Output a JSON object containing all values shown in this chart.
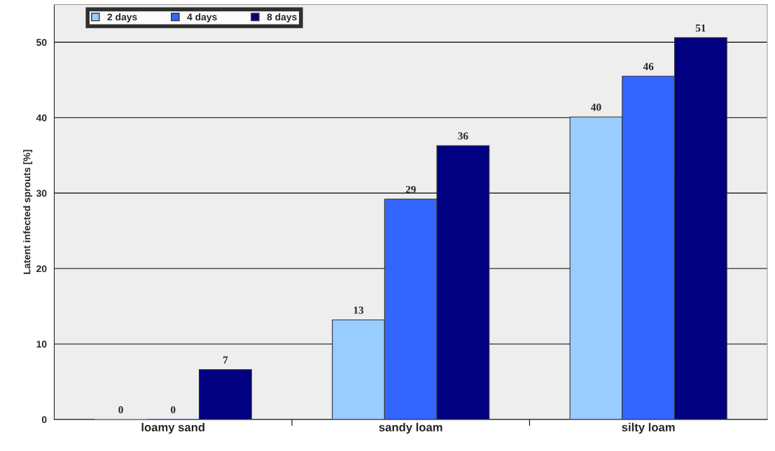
{
  "chart_data": {
    "type": "bar",
    "ylabel": "Latent infected sprouts [%]",
    "categories": [
      "loamy sand",
      "sandy loam",
      "silty loam"
    ],
    "series": [
      {
        "name": "2 days",
        "color": "#99ccff",
        "values": [
          0,
          13.2,
          40.1
        ],
        "value_labels": [
          "0",
          "13",
          "40"
        ]
      },
      {
        "name": "4 days",
        "color": "#3366ff",
        "values": [
          0,
          29.2,
          45.5
        ],
        "value_labels": [
          "0",
          "29",
          "46"
        ]
      },
      {
        "name": "8 days",
        "color": "#000080",
        "values": [
          6.6,
          36.3,
          50.6
        ],
        "value_labels": [
          "7",
          "36",
          "51"
        ]
      }
    ],
    "ylim": [
      0,
      55
    ],
    "yticks": [
      0,
      10,
      20,
      30,
      40,
      50
    ],
    "grid": "y",
    "legend": "top left"
  }
}
